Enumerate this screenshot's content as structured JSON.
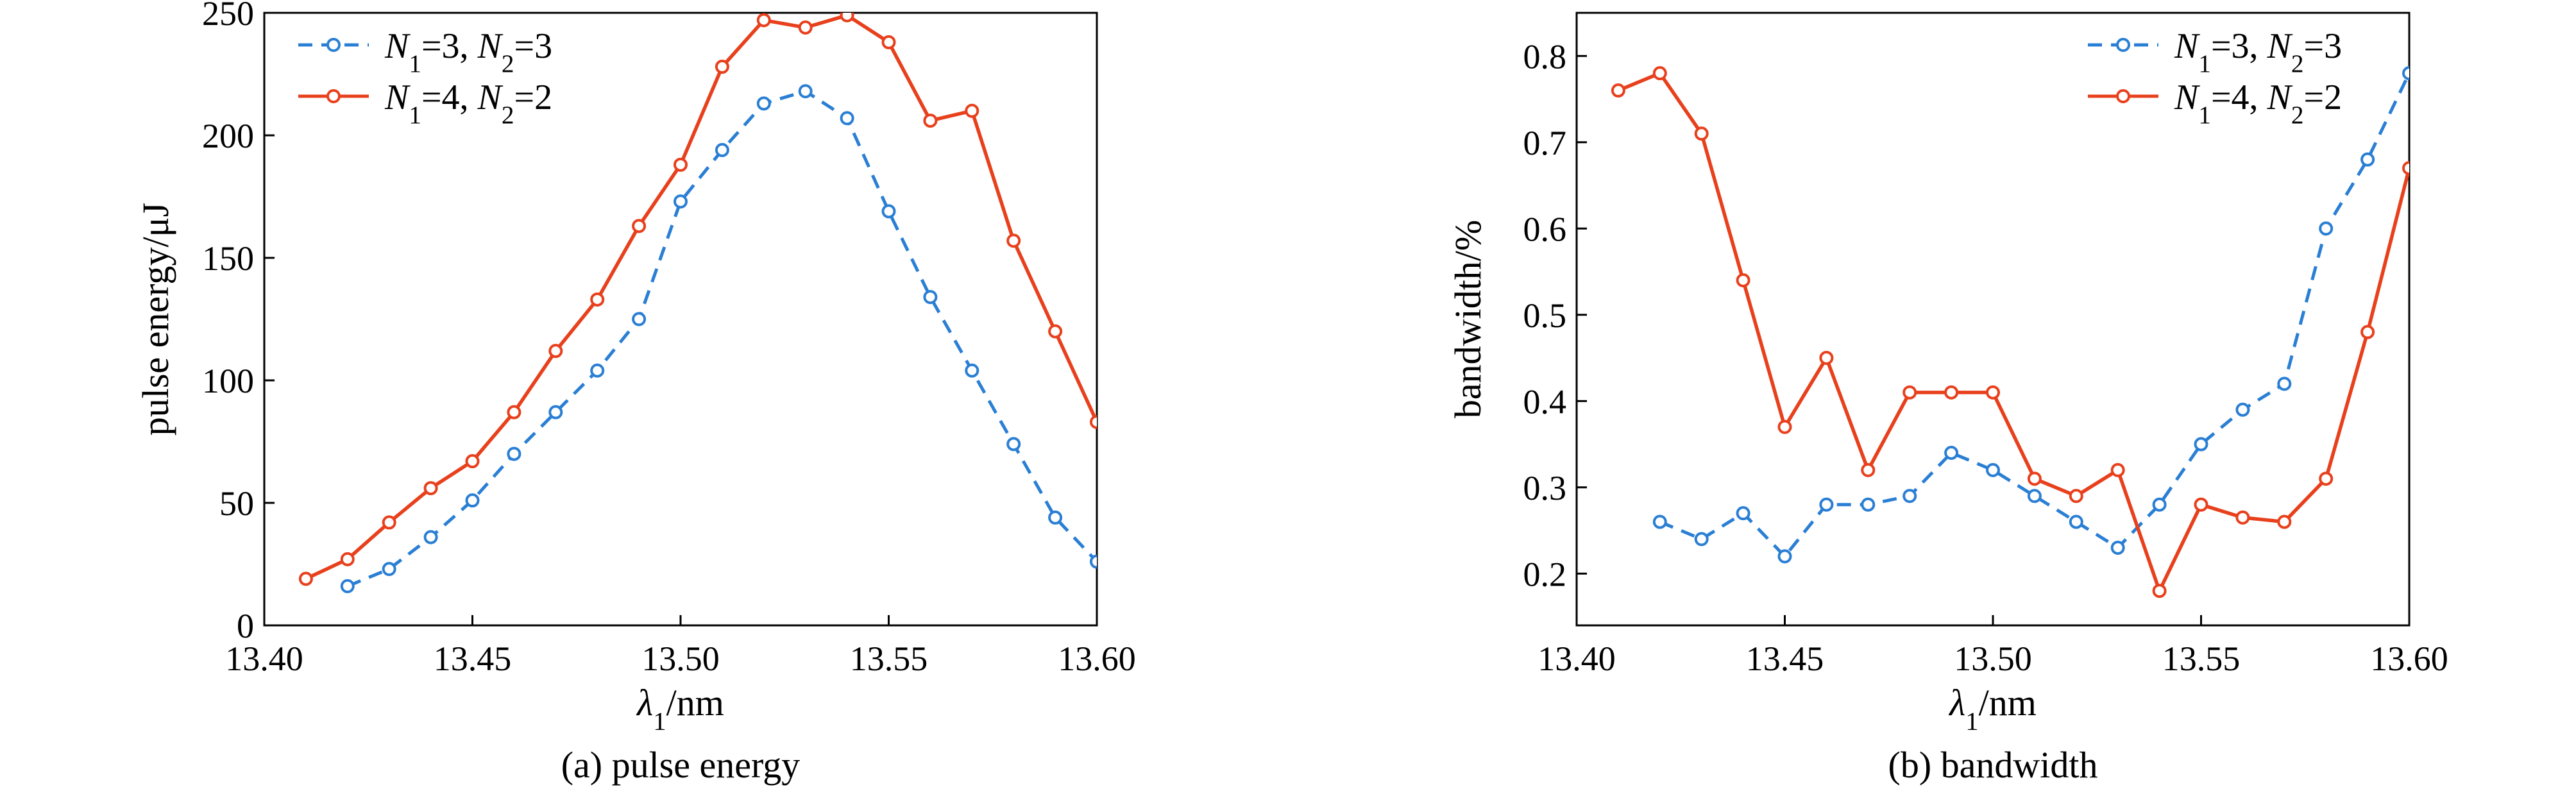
{
  "chart_data": [
    {
      "type": "line",
      "caption": "(a) pulse energy",
      "xlabel": "/nm",
      "xlabel_symbol": "λ",
      "xlabel_subscript": "1",
      "ylabel": "pulse energy/μJ",
      "xlim": [
        13.4,
        13.6
      ],
      "ylim": [
        0,
        250
      ],
      "xticks": [
        "13.40",
        "13.45",
        "13.50",
        "13.55",
        "13.60"
      ],
      "xtick_values": [
        13.4,
        13.45,
        13.5,
        13.55,
        13.6
      ],
      "yticks": [
        "0",
        "50",
        "100",
        "150",
        "200",
        "250"
      ],
      "ytick_values": [
        0,
        50,
        100,
        150,
        200,
        250
      ],
      "grid": false,
      "legend_position": "top-left",
      "series": [
        {
          "legend": [
            "N",
            "1",
            "=3, ",
            "N",
            "2",
            "=3"
          ],
          "color": "#2a7fd4",
          "dashed": true,
          "x": [
            13.42,
            13.43,
            13.44,
            13.45,
            13.46,
            13.47,
            13.48,
            13.49,
            13.5,
            13.51,
            13.52,
            13.53,
            13.54,
            13.55,
            13.56,
            13.57,
            13.58,
            13.59,
            13.6
          ],
          "y": [
            16,
            23,
            36,
            51,
            70,
            87,
            104,
            125,
            173,
            194,
            213,
            218,
            207,
            169,
            134,
            104,
            74,
            44,
            26
          ]
        },
        {
          "legend": [
            "N",
            "1",
            "=4, ",
            "N",
            "2",
            "=2"
          ],
          "color": "#e8401c",
          "dashed": false,
          "x": [
            13.41,
            13.42,
            13.43,
            13.44,
            13.45,
            13.46,
            13.47,
            13.48,
            13.49,
            13.5,
            13.51,
            13.52,
            13.53,
            13.54,
            13.55,
            13.56,
            13.57,
            13.58,
            13.59,
            13.6
          ],
          "y": [
            19,
            27,
            42,
            56,
            67,
            87,
            112,
            133,
            163,
            188,
            228,
            247,
            244,
            249,
            238,
            206,
            210,
            157,
            120,
            83
          ]
        }
      ]
    },
    {
      "type": "line",
      "caption": "(b) bandwidth",
      "xlabel": "/nm",
      "xlabel_symbol": "λ",
      "xlabel_subscript": "1",
      "ylabel": "bandwidth/%",
      "xlim": [
        13.4,
        13.6
      ],
      "ylim": [
        0.14,
        0.85
      ],
      "xticks": [
        "13.40",
        "13.45",
        "13.50",
        "13.55",
        "13.60"
      ],
      "xtick_values": [
        13.4,
        13.45,
        13.5,
        13.55,
        13.6
      ],
      "yticks": [
        "0.2",
        "0.3",
        "0.4",
        "0.5",
        "0.6",
        "0.7",
        "0.8"
      ],
      "ytick_values": [
        0.2,
        0.3,
        0.4,
        0.5,
        0.6,
        0.7,
        0.8
      ],
      "grid": false,
      "legend_position": "top-right",
      "series": [
        {
          "legend": [
            "N",
            "1",
            "=3, ",
            "N",
            "2",
            "=3"
          ],
          "color": "#2a7fd4",
          "dashed": true,
          "x": [
            13.42,
            13.43,
            13.44,
            13.45,
            13.46,
            13.47,
            13.48,
            13.49,
            13.5,
            13.51,
            13.52,
            13.53,
            13.54,
            13.55,
            13.56,
            13.57,
            13.58,
            13.59,
            13.6
          ],
          "y": [
            0.26,
            0.24,
            0.27,
            0.22,
            0.28,
            0.28,
            0.29,
            0.34,
            0.32,
            0.29,
            0.26,
            0.23,
            0.28,
            0.35,
            0.39,
            0.42,
            0.6,
            0.68,
            0.78
          ]
        },
        {
          "legend": [
            "N",
            "1",
            "=4, ",
            "N",
            "2",
            "=2"
          ],
          "color": "#e8401c",
          "dashed": false,
          "x": [
            13.41,
            13.42,
            13.43,
            13.44,
            13.45,
            13.46,
            13.47,
            13.48,
            13.49,
            13.5,
            13.51,
            13.52,
            13.53,
            13.54,
            13.55,
            13.56,
            13.57,
            13.58,
            13.59,
            13.6
          ],
          "y": [
            0.76,
            0.78,
            0.71,
            0.54,
            0.37,
            0.45,
            0.32,
            0.41,
            0.41,
            0.41,
            0.31,
            0.29,
            0.32,
            0.18,
            0.28,
            0.265,
            0.26,
            0.31,
            0.48,
            0.67
          ]
        }
      ]
    }
  ]
}
